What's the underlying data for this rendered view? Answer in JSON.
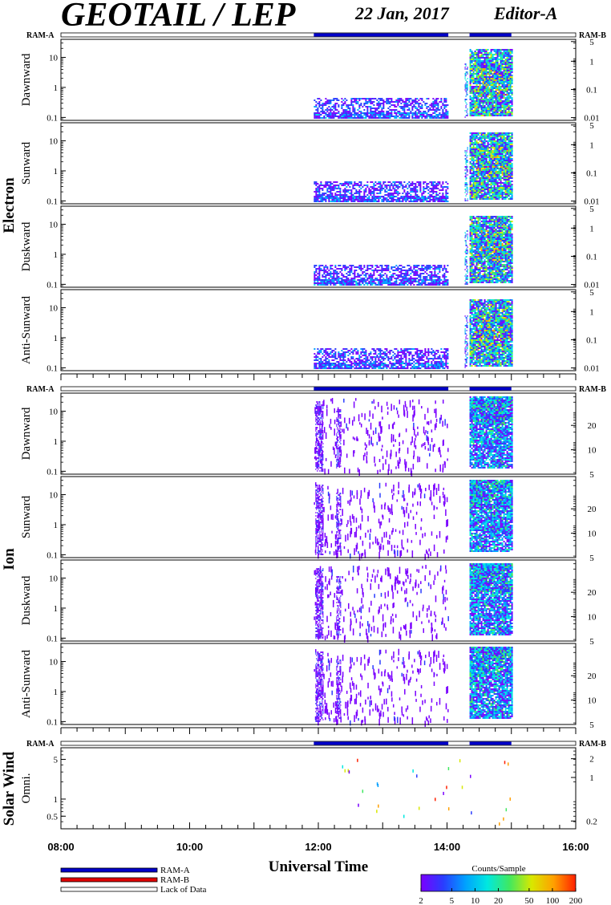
{
  "header": {
    "title": "GEOTAIL / LEP",
    "date": "22 Jan, 2017",
    "editor": "Editor-A"
  },
  "chart_data": {
    "type": "heatmap",
    "x_range": [
      "08:00",
      "16:00"
    ],
    "x_tick_labels": [
      "08:00",
      "10:00",
      "12:00",
      "14:00",
      "16:00"
    ],
    "xlabel": "Universal Time",
    "groups": [
      {
        "name": "Electron",
        "ram_left": "RAM-A",
        "ram_right": "RAM-B",
        "panels": [
          {
            "name": "Dawnward",
            "left_ticks": [
              "10",
              "1",
              "0.1"
            ],
            "right_ticks": [
              "5",
              "1",
              "0.1",
              "0.01"
            ]
          },
          {
            "name": "Sunward",
            "left_ticks": [
              "10",
              "1",
              "0.1"
            ],
            "right_ticks": [
              "5",
              "1",
              "0.1",
              "0.01"
            ]
          },
          {
            "name": "Duskward",
            "left_ticks": [
              "10",
              "1",
              "0.1"
            ],
            "right_ticks": [
              "5",
              "1",
              "0.1",
              "0.01"
            ]
          },
          {
            "name": "Anti-Sunward",
            "left_ticks": [
              "10",
              "1",
              "0.1"
            ],
            "right_ticks": [
              "5",
              "1",
              "0.1",
              "0.01"
            ]
          }
        ]
      },
      {
        "name": "Ion",
        "ram_left": "RAM-A",
        "ram_right": "RAM-B",
        "panels": [
          {
            "name": "Dawnward",
            "left_ticks": [
              "10",
              "1",
              "0.1"
            ],
            "right_ticks": [
              "20",
              "10",
              "5"
            ]
          },
          {
            "name": "Sunward",
            "left_ticks": [
              "10",
              "1",
              "0.1"
            ],
            "right_ticks": [
              "20",
              "10",
              "5"
            ]
          },
          {
            "name": "Duskward",
            "left_ticks": [
              "10",
              "1",
              "0.1"
            ],
            "right_ticks": [
              "20",
              "10",
              "5"
            ]
          },
          {
            "name": "Anti-Sunward",
            "left_ticks": [
              "10",
              "1",
              "0.1"
            ],
            "right_ticks": [
              "20",
              "10",
              "5"
            ]
          }
        ]
      },
      {
        "name": "Solar Wind",
        "ram_left": "RAM-A",
        "ram_right": "RAM-B",
        "panels": [
          {
            "name": "Omni.",
            "left_ticks": [
              "5",
              "1",
              "0.5"
            ],
            "right_ticks": [
              "2",
              "1",
              "0.2"
            ]
          }
        ]
      }
    ],
    "data_intervals_hours": {
      "low_activity": [
        11.93,
        14.02
      ],
      "high_activity": [
        14.35,
        15.0
      ]
    },
    "ram_a_intervals_hours": [
      [
        11.93,
        14.02
      ],
      [
        14.35,
        15.0
      ]
    ],
    "colorbar": {
      "label": "Counts/Sample",
      "tick_labels": [
        "2",
        "5",
        "10",
        "20",
        "50",
        "100",
        "200"
      ],
      "colors": [
        "#7a00ff",
        "#2a3cff",
        "#00a0ff",
        "#00e8e0",
        "#40e860",
        "#d8e800",
        "#ffa000",
        "#ff2000"
      ]
    },
    "legend": [
      {
        "label": "RAM-A",
        "color": "#0000c8"
      },
      {
        "label": "RAM-B",
        "color": "#e00000"
      },
      {
        "label": "Lack of Data",
        "color": "#ffffff"
      }
    ]
  }
}
